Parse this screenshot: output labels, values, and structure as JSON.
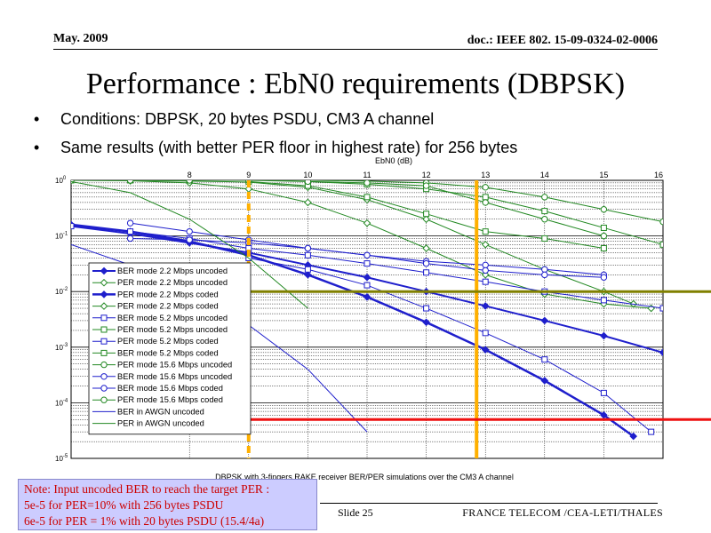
{
  "header": {
    "date": "May. 2009",
    "doc": "doc.: IEEE 802. 15-09-0324-02-0006"
  },
  "slide": {
    "title": "Performance : EbN0 requirements (DBPSK)",
    "bullets": [
      "Conditions: DBPSK, 20 bytes PSDU, CM3 A channel",
      "Same results (with better PER floor in highest rate) for 256 bytes"
    ]
  },
  "footer": {
    "slide_label": "Slide 25",
    "org": "FRANCE TELECOM /CEA-LETI/THALES"
  },
  "note": {
    "lines": [
      "Note: Input uncoded BER to reach the target PER :",
      "5e-5 for PER=10% with 256 bytes PSDU",
      "6e-5 for PER = 1% with 20 bytes PSDU (15.4/4a)"
    ],
    "bg_color": "#ccccff",
    "text_color": "#cc0000"
  },
  "chart_data": {
    "type": "line",
    "title": "",
    "xlabel": "EbN0 (dB)",
    "caption": "DBPSK with 3-fingers RAKE receiver BER/PER simulations over the CM3 A channel",
    "xlim": [
      6,
      16
    ],
    "ylim": [
      1e-05,
      1
    ],
    "yscale": "log",
    "xticks": [
      8,
      9,
      10,
      11,
      12,
      13,
      14,
      15,
      16
    ],
    "xticks_position": "top",
    "yticks": [
      "10^0",
      "10^-1",
      "10^-2",
      "10^-3",
      "10^-4",
      "10^-5"
    ],
    "grid": true,
    "legend_position": "lower-left",
    "series": [
      {
        "name": "BER mode 2.2 Mbps uncoded",
        "color": "#1f1fcc",
        "marker": "diamond-filled",
        "width": 2,
        "x": [
          6,
          7,
          8,
          9,
          10,
          11,
          12,
          13,
          14,
          15,
          16
        ],
        "y": [
          0.15,
          0.11,
          0.075,
          0.05,
          0.03,
          0.018,
          0.01,
          0.0055,
          0.003,
          0.0016,
          0.0008
        ]
      },
      {
        "name": "PER mode 2.2 Mbps uncoded",
        "color": "#228822",
        "marker": "diamond-open",
        "width": 1,
        "x": [
          6,
          7,
          8,
          9,
          10,
          11,
          12,
          13,
          14,
          15,
          15.5
        ],
        "y": [
          1,
          0.99,
          0.97,
          0.93,
          0.75,
          0.45,
          0.2,
          0.07,
          0.025,
          0.01,
          0.006
        ]
      },
      {
        "name": "PER mode 2.2 Mbps coded",
        "color": "#1f1fcc",
        "marker": "diamond-filled",
        "width": 2.5,
        "x": [
          6,
          7,
          8,
          9,
          10,
          11,
          12,
          13,
          14,
          15,
          15.5
        ],
        "y": [
          0.16,
          0.12,
          0.08,
          0.045,
          0.02,
          0.008,
          0.0028,
          0.0009,
          0.00025,
          6e-05,
          2.5e-05
        ]
      },
      {
        "name": "PER mode 2.2 Mbps coded",
        "color": "#228822",
        "marker": "diamond-open",
        "width": 1,
        "x": [
          6,
          7,
          8,
          9,
          10,
          11,
          12,
          13,
          14,
          15,
          15.8
        ],
        "y": [
          1,
          0.98,
          0.9,
          0.7,
          0.4,
          0.17,
          0.06,
          0.02,
          0.009,
          0.006,
          0.005
        ]
      },
      {
        "name": "BER mode 5.2 Mbps uncoded",
        "color": "#1f1fcc",
        "marker": "square-open",
        "width": 1,
        "x": [
          6,
          7,
          8,
          9,
          10,
          11,
          12,
          13,
          14,
          15,
          16
        ],
        "y": [
          0.15,
          0.12,
          0.09,
          0.06,
          0.045,
          0.032,
          0.022,
          0.015,
          0.01,
          0.007,
          0.005
        ]
      },
      {
        "name": "PER mode 5.2 Mbps uncoded",
        "color": "#228822",
        "marker": "square-open",
        "width": 1,
        "x": [
          6,
          7,
          8,
          9,
          10,
          11,
          12,
          13,
          14,
          15,
          16
        ],
        "y": [
          1,
          1,
          1,
          1,
          0.95,
          0.85,
          0.7,
          0.5,
          0.28,
          0.14,
          0.07
        ]
      },
      {
        "name": "PER mode 5.2 Mbps coded",
        "color": "#1f1fcc",
        "marker": "square-open",
        "width": 1,
        "x": [
          9,
          10,
          11,
          12,
          13,
          14,
          15,
          15.8
        ],
        "y": [
          0.04,
          0.025,
          0.013,
          0.005,
          0.0018,
          0.0006,
          0.00015,
          3e-05
        ]
      },
      {
        "name": "BER mode 5.2 Mbps coded",
        "color": "#228822",
        "marker": "square-open",
        "width": 1,
        "x": [
          9,
          10,
          11,
          12,
          13,
          14,
          15
        ],
        "y": [
          0.95,
          0.8,
          0.5,
          0.25,
          0.12,
          0.09,
          0.06
        ]
      },
      {
        "name": "PER mode 15.6 Mbps uncoded",
        "color": "#228822",
        "marker": "circle-open",
        "width": 1,
        "x": [
          6,
          7,
          8,
          9,
          10,
          11,
          12,
          13,
          14,
          15,
          16
        ],
        "y": [
          1,
          1,
          1,
          1,
          1,
          0.97,
          0.9,
          0.75,
          0.5,
          0.3,
          0.18
        ]
      },
      {
        "name": "BER mode 15.6 Mbps uncoded",
        "color": "#1f1fcc",
        "marker": "circle-open",
        "width": 1,
        "x": [
          7,
          8,
          9,
          10,
          11,
          12,
          13,
          14,
          15
        ],
        "y": [
          0.17,
          0.12,
          0.085,
          0.06,
          0.045,
          0.035,
          0.03,
          0.025,
          0.02
        ]
      },
      {
        "name": "BER mode 15.6 Mbps coded",
        "color": "#1f1fcc",
        "marker": "circle-open",
        "width": 1,
        "x": [
          7,
          8,
          9,
          10,
          11,
          12,
          13,
          14,
          15
        ],
        "y": [
          0.09,
          0.085,
          0.075,
          0.06,
          0.045,
          0.032,
          0.024,
          0.02,
          0.018
        ]
      },
      {
        "name": "PER mode 15.6 Mbps coded",
        "color": "#228822",
        "marker": "circle-open",
        "width": 1,
        "x": [
          10,
          11,
          12,
          13,
          14,
          15
        ],
        "y": [
          0.95,
          0.9,
          0.8,
          0.4,
          0.2,
          0.1
        ]
      },
      {
        "name": "BER in AWGN uncoded",
        "color": "#1f1fcc",
        "marker": "none",
        "width": 1,
        "x": [
          6,
          7,
          8,
          9,
          10,
          11
        ],
        "y": [
          0.07,
          0.03,
          0.01,
          0.0025,
          0.0004,
          3e-05
        ]
      },
      {
        "name": "PER in AWGN uncoded",
        "color": "#228822",
        "marker": "none",
        "width": 1,
        "x": [
          6,
          7,
          8,
          9,
          10
        ],
        "y": [
          0.95,
          0.6,
          0.2,
          0.04,
          0.005
        ]
      }
    ],
    "reference_lines": [
      {
        "orientation": "vertical",
        "x": 9,
        "color": "#ffb000",
        "style": "dashed"
      },
      {
        "orientation": "vertical",
        "x": 12.85,
        "color": "#ffb000",
        "style": "solid"
      },
      {
        "orientation": "horizontal",
        "y": 0.01,
        "color": "#808000",
        "style": "solid"
      },
      {
        "orientation": "horizontal",
        "y": 5e-05,
        "color": "#ee1111",
        "style": "solid"
      }
    ]
  }
}
